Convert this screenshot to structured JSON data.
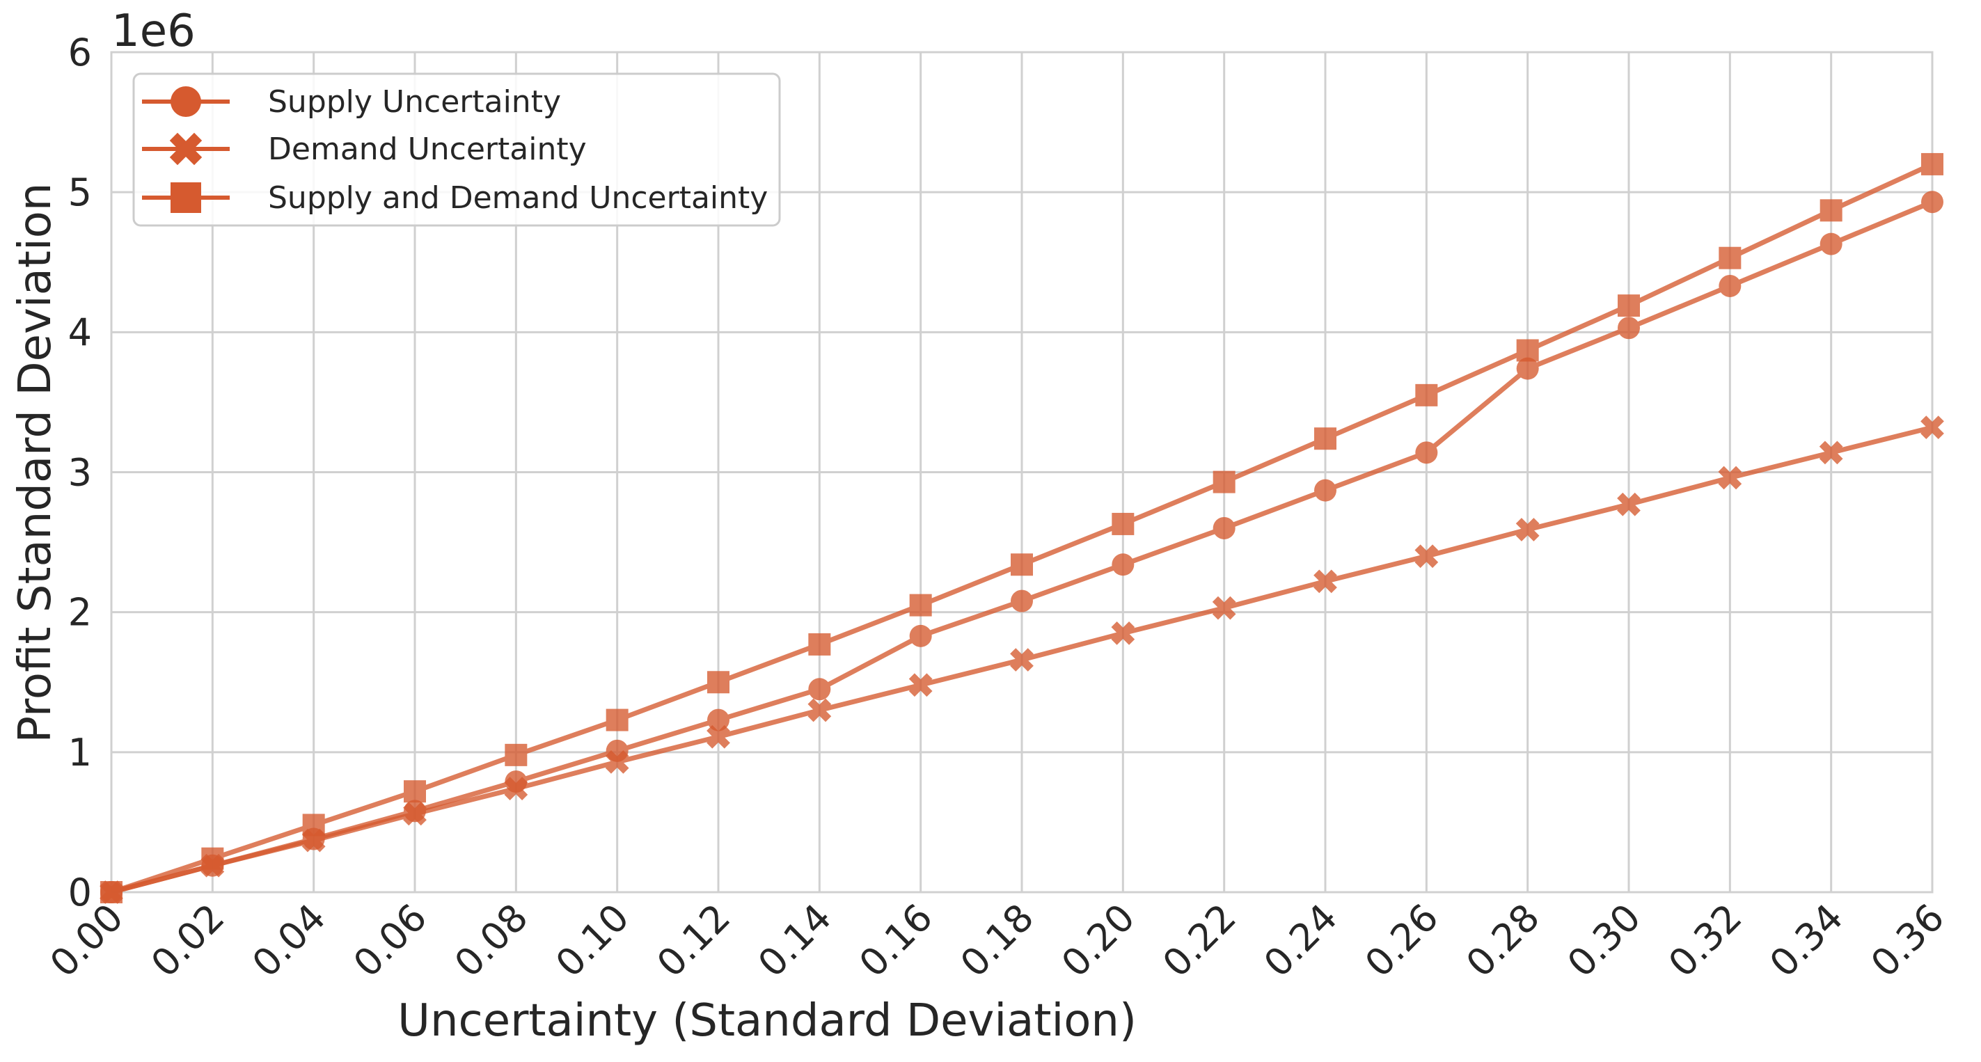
{
  "colors": {
    "series": "#d65a2f",
    "grid": "#d0d0d0",
    "text": "#262626",
    "background": "#ffffff"
  },
  "chart_data": {
    "type": "line",
    "xlabel": "Uncertainty (Standard Deviation)",
    "ylabel": "Profit Standard Deviation",
    "y_offset_label": "1e6",
    "xlim": [
      0,
      0.36
    ],
    "ylim": [
      0,
      6
    ],
    "x_ticks": [
      "0.00",
      "0.02",
      "0.04",
      "0.06",
      "0.08",
      "0.10",
      "0.12",
      "0.14",
      "0.16",
      "0.18",
      "0.20",
      "0.22",
      "0.24",
      "0.26",
      "0.28",
      "0.30",
      "0.32",
      "0.34",
      "0.36"
    ],
    "y_ticks": [
      "0",
      "1",
      "2",
      "3",
      "4",
      "5",
      "6"
    ],
    "grid": true,
    "legend_position": "top-left",
    "x": [
      0.0,
      0.02,
      0.04,
      0.06,
      0.08,
      0.1,
      0.12,
      0.14,
      0.16,
      0.18,
      0.2,
      0.22,
      0.24,
      0.26,
      0.28,
      0.3,
      0.32,
      0.34,
      0.36
    ],
    "series": [
      {
        "name": "Supply Uncertainty",
        "marker": "circle",
        "values": [
          0.0,
          0.19,
          0.38,
          0.58,
          0.79,
          1.01,
          1.23,
          1.45,
          1.83,
          2.08,
          2.34,
          2.6,
          2.87,
          3.14,
          3.74,
          4.03,
          4.33,
          4.63,
          4.93
        ]
      },
      {
        "name": "Demand Uncertainty",
        "marker": "x",
        "values": [
          0.0,
          0.19,
          0.37,
          0.56,
          0.74,
          0.93,
          1.11,
          1.3,
          1.48,
          1.66,
          1.85,
          2.03,
          2.22,
          2.4,
          2.59,
          2.77,
          2.96,
          3.14,
          3.32
        ]
      },
      {
        "name": "Supply and Demand Uncertainty",
        "marker": "square",
        "values": [
          0.0,
          0.24,
          0.48,
          0.72,
          0.98,
          1.23,
          1.5,
          1.77,
          2.05,
          2.34,
          2.63,
          2.93,
          3.24,
          3.55,
          3.87,
          4.19,
          4.53,
          4.87,
          5.2
        ]
      }
    ]
  }
}
